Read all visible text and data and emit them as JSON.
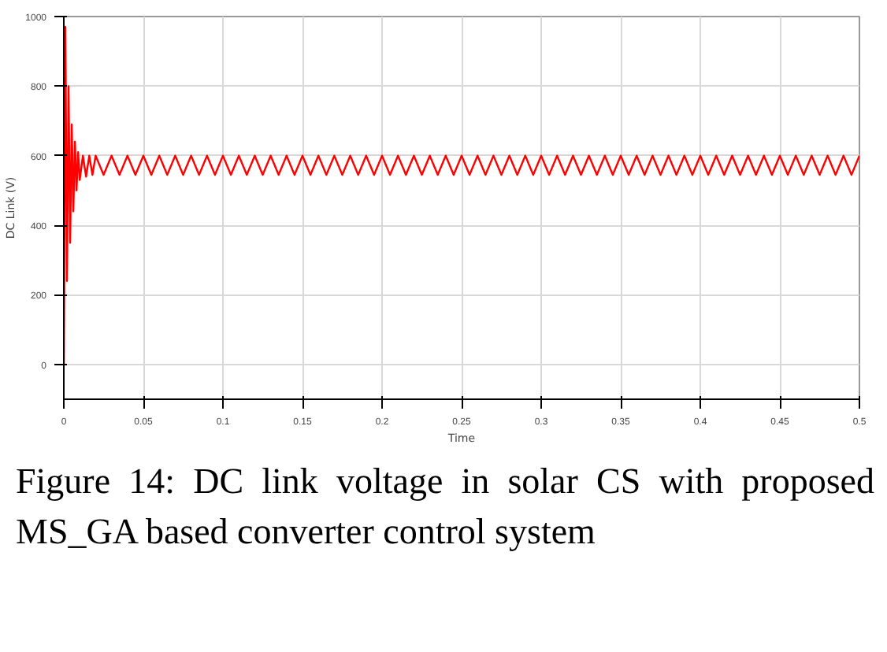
{
  "chart_data": {
    "type": "line",
    "xlabel": "Time",
    "ylabel": "DC Link (V)",
    "annotations": [
      "Figure 14: DC link voltage in solar CS with proposed MS_GA based converter control system"
    ],
    "xlim": [
      0,
      0.5
    ],
    "ylim": [
      -100,
      1000
    ],
    "xticks": [
      0,
      0.05,
      0.1,
      0.15,
      0.2,
      0.25,
      0.3,
      0.35,
      0.4,
      0.45,
      0.5
    ],
    "yticks": [
      0,
      200,
      400,
      600,
      800,
      1000
    ],
    "grid": true,
    "line_style": "solid",
    "series": [
      {
        "color": "#ff0000",
        "x": [
          0,
          0.001,
          0.002,
          0.003,
          0.004,
          0.005,
          0.006,
          0.007,
          0.008,
          0.009,
          0.01,
          0.012,
          0.014,
          0.016,
          0.018,
          0.02,
          0.025,
          0.03,
          0.035,
          0.04,
          0.045,
          0.05,
          0.055,
          0.06,
          0.065,
          0.07,
          0.075,
          0.08,
          0.085,
          0.09,
          0.095,
          0.1,
          0.105,
          0.11,
          0.115,
          0.12,
          0.125,
          0.13,
          0.135,
          0.14,
          0.145,
          0.15,
          0.155,
          0.16,
          0.165,
          0.17,
          0.175,
          0.18,
          0.185,
          0.19,
          0.195,
          0.2,
          0.205,
          0.21,
          0.215,
          0.22,
          0.225,
          0.23,
          0.235,
          0.24,
          0.245,
          0.25,
          0.255,
          0.26,
          0.265,
          0.27,
          0.275,
          0.28,
          0.285,
          0.29,
          0.295,
          0.3,
          0.305,
          0.31,
          0.315,
          0.32,
          0.325,
          0.33,
          0.335,
          0.34,
          0.345,
          0.35,
          0.355,
          0.36,
          0.365,
          0.37,
          0.375,
          0.38,
          0.385,
          0.39,
          0.395,
          0.4,
          0.405,
          0.41,
          0.415,
          0.42,
          0.425,
          0.43,
          0.435,
          0.44,
          0.445,
          0.45,
          0.455,
          0.46,
          0.465,
          0.47,
          0.475,
          0.48,
          0.485,
          0.49,
          0.495,
          0.5
        ],
        "values": [
          0,
          970,
          240,
          800,
          350,
          690,
          440,
          640,
          500,
          610,
          530,
          600,
          540,
          600,
          545,
          600,
          545,
          600,
          545,
          600,
          545,
          600,
          545,
          600,
          545,
          600,
          545,
          600,
          545,
          600,
          545,
          600,
          545,
          600,
          545,
          600,
          545,
          600,
          545,
          600,
          545,
          600,
          545,
          600,
          545,
          600,
          545,
          600,
          545,
          600,
          545,
          600,
          545,
          600,
          545,
          600,
          545,
          600,
          545,
          600,
          545,
          600,
          545,
          600,
          545,
          600,
          545,
          600,
          545,
          600,
          545,
          600,
          545,
          600,
          545,
          600,
          545,
          600,
          545,
          600,
          545,
          600,
          545,
          600,
          545,
          600,
          545,
          600,
          545,
          600,
          545,
          600,
          545,
          600,
          545,
          600,
          545,
          600,
          545,
          600,
          545,
          600,
          545,
          600,
          545,
          600,
          545,
          600,
          545,
          600,
          545,
          600
        ]
      }
    ]
  }
}
